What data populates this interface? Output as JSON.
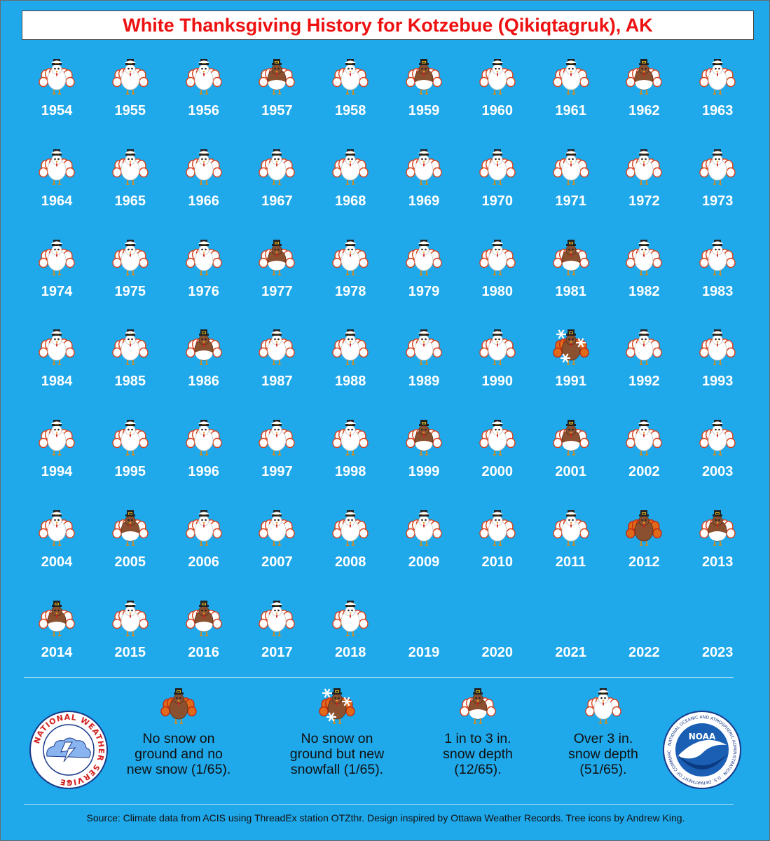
{
  "title": "White Thanksgiving History for Kotzebue (Qikiqtagruk), AK",
  "colors": {
    "background": "#1fa8ea",
    "title_text": "#ee1111",
    "turkey_brown": "#8b5030",
    "snow_white": "#ffffff",
    "feather_orange": "#e06a1a",
    "feather_red": "#c42a14"
  },
  "chart_data": {
    "type": "table",
    "title": "White Thanksgiving History for Kotzebue (Qikiqtagruk), AK",
    "categories": {
      "no_snow": "No snow on ground and no new snow",
      "new_snow": "No snow on ground but new snowfall",
      "depth_1_3": "1 in to 3 in. snow depth",
      "depth_over_3": "Over 3 in. snow depth",
      "no_data": ""
    },
    "years": [
      {
        "year": "1954",
        "category": "depth_over_3"
      },
      {
        "year": "1955",
        "category": "depth_over_3"
      },
      {
        "year": "1956",
        "category": "depth_over_3"
      },
      {
        "year": "1957",
        "category": "depth_1_3"
      },
      {
        "year": "1958",
        "category": "depth_over_3"
      },
      {
        "year": "1959",
        "category": "depth_1_3"
      },
      {
        "year": "1960",
        "category": "depth_over_3"
      },
      {
        "year": "1961",
        "category": "depth_over_3"
      },
      {
        "year": "1962",
        "category": "depth_1_3"
      },
      {
        "year": "1963",
        "category": "depth_over_3"
      },
      {
        "year": "1964",
        "category": "depth_over_3"
      },
      {
        "year": "1965",
        "category": "depth_over_3"
      },
      {
        "year": "1966",
        "category": "depth_over_3"
      },
      {
        "year": "1967",
        "category": "depth_over_3"
      },
      {
        "year": "1968",
        "category": "depth_over_3"
      },
      {
        "year": "1969",
        "category": "depth_over_3"
      },
      {
        "year": "1970",
        "category": "depth_over_3"
      },
      {
        "year": "1971",
        "category": "depth_over_3"
      },
      {
        "year": "1972",
        "category": "depth_over_3"
      },
      {
        "year": "1973",
        "category": "depth_over_3"
      },
      {
        "year": "1974",
        "category": "depth_over_3"
      },
      {
        "year": "1975",
        "category": "depth_over_3"
      },
      {
        "year": "1976",
        "category": "depth_over_3"
      },
      {
        "year": "1977",
        "category": "depth_1_3"
      },
      {
        "year": "1978",
        "category": "depth_over_3"
      },
      {
        "year": "1979",
        "category": "depth_over_3"
      },
      {
        "year": "1980",
        "category": "depth_over_3"
      },
      {
        "year": "1981",
        "category": "depth_1_3"
      },
      {
        "year": "1982",
        "category": "depth_over_3"
      },
      {
        "year": "1983",
        "category": "depth_over_3"
      },
      {
        "year": "1984",
        "category": "depth_over_3"
      },
      {
        "year": "1985",
        "category": "depth_over_3"
      },
      {
        "year": "1986",
        "category": "depth_1_3"
      },
      {
        "year": "1987",
        "category": "depth_over_3"
      },
      {
        "year": "1988",
        "category": "depth_over_3"
      },
      {
        "year": "1989",
        "category": "depth_over_3"
      },
      {
        "year": "1990",
        "category": "depth_over_3"
      },
      {
        "year": "1991",
        "category": "new_snow"
      },
      {
        "year": "1992",
        "category": "depth_over_3"
      },
      {
        "year": "1993",
        "category": "depth_over_3"
      },
      {
        "year": "1994",
        "category": "depth_over_3"
      },
      {
        "year": "1995",
        "category": "depth_over_3"
      },
      {
        "year": "1996",
        "category": "depth_over_3"
      },
      {
        "year": "1997",
        "category": "depth_over_3"
      },
      {
        "year": "1998",
        "category": "depth_over_3"
      },
      {
        "year": "1999",
        "category": "depth_1_3"
      },
      {
        "year": "2000",
        "category": "depth_over_3"
      },
      {
        "year": "2001",
        "category": "depth_1_3"
      },
      {
        "year": "2002",
        "category": "depth_over_3"
      },
      {
        "year": "2003",
        "category": "depth_over_3"
      },
      {
        "year": "2004",
        "category": "depth_over_3"
      },
      {
        "year": "2005",
        "category": "depth_1_3"
      },
      {
        "year": "2006",
        "category": "depth_over_3"
      },
      {
        "year": "2007",
        "category": "depth_over_3"
      },
      {
        "year": "2008",
        "category": "depth_over_3"
      },
      {
        "year": "2009",
        "category": "depth_over_3"
      },
      {
        "year": "2010",
        "category": "depth_over_3"
      },
      {
        "year": "2011",
        "category": "depth_over_3"
      },
      {
        "year": "2012",
        "category": "no_snow"
      },
      {
        "year": "2013",
        "category": "depth_1_3"
      },
      {
        "year": "2014",
        "category": "depth_1_3"
      },
      {
        "year": "2015",
        "category": "depth_over_3"
      },
      {
        "year": "2016",
        "category": "depth_1_3"
      },
      {
        "year": "2017",
        "category": "depth_over_3"
      },
      {
        "year": "2018",
        "category": "depth_over_3"
      },
      {
        "year": "2019",
        "category": "no_data"
      },
      {
        "year": "2020",
        "category": "no_data"
      },
      {
        "year": "2021",
        "category": "no_data"
      },
      {
        "year": "2022",
        "category": "no_data"
      },
      {
        "year": "2023",
        "category": "no_data"
      }
    ]
  },
  "legend": {
    "items": [
      {
        "category": "no_snow",
        "line1": "No snow on",
        "line2": "ground and no",
        "line3": "new snow (1/65)."
      },
      {
        "category": "new_snow",
        "line1": "No snow on",
        "line2": "ground but new",
        "line3": "snowfall (1/65)."
      },
      {
        "category": "depth_1_3",
        "line1": "1 in to 3 in.",
        "line2": "snow depth",
        "line3": "(12/65)."
      },
      {
        "category": "depth_over_3",
        "line1": "Over 3 in.",
        "line2": "snow depth",
        "line3": "(51/65)."
      }
    ]
  },
  "logos": {
    "nws_text": "NATIONAL WEATHER SERVICE",
    "noaa_center": "NOAA",
    "noaa_ring": "NATIONAL OCEANIC AND ATMOSPHERIC ADMINISTRATION · U.S. DEPARTMENT OF COMMERCE"
  },
  "source": "Source: Climate data from ACIS using ThreadEx station OTZthr. Design inspired by Ottawa Weather Records. Tree icons by Andrew King."
}
